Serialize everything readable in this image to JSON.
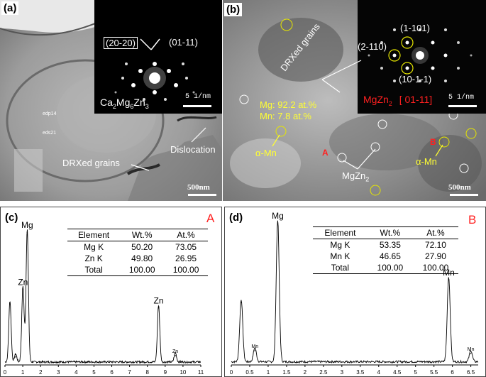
{
  "panel_a": {
    "label": "(a)",
    "saed_spots": [
      "(20-20)",
      "(01-11)"
    ],
    "phase": "Ca2Mg6Zn3",
    "phase_parts": [
      "Ca",
      "2",
      "Mg",
      "6",
      "Zn",
      "3"
    ],
    "inset_scale": "5 1/nm",
    "annotations": [
      "edp14",
      "eds21",
      "DRXed grains",
      "Dislocation"
    ],
    "scale_bar": "500nm"
  },
  "panel_b": {
    "label": "(b)",
    "saed_spots": [
      "(1-101)",
      "(2-110)",
      "(10-1-1)"
    ],
    "phase_name": "MgZn",
    "phase_sub": "2",
    "zone_axis": "[ 01-11]",
    "inset_scale": "5 1/nm",
    "composition": [
      "Mg: 92.2 at.%",
      "Mn: 7.8 at.%"
    ],
    "annotations": [
      "DRXed grains",
      "α-Mn",
      "A",
      "MgZn",
      "2",
      "B",
      "α-Mn"
    ],
    "scale_bar": "500nm"
  },
  "chart_data": [
    {
      "type": "line",
      "panel_label": "(c)",
      "point_label": "A",
      "xlim": [
        0,
        11
      ],
      "x_ticks": [
        "0",
        "1",
        "2",
        "3",
        "4",
        "5",
        "6",
        "7",
        "8",
        "9",
        "10",
        "11"
      ],
      "peaks": [
        {
          "x": 0.28,
          "rel_height": 0.46
        },
        {
          "x": 0.6,
          "rel_height": 0.06
        },
        {
          "x": 1.01,
          "rel_height": 0.57,
          "label": "Zn"
        },
        {
          "x": 1.25,
          "rel_height": 1.0,
          "label": "Mg"
        },
        {
          "x": 8.63,
          "rel_height": 0.43,
          "label": "Zn"
        },
        {
          "x": 9.57,
          "rel_height": 0.07,
          "label": "Zn"
        }
      ],
      "table": {
        "headers": [
          "Element",
          "Wt.%",
          "At.%"
        ],
        "rows": [
          [
            "Mg K",
            "50.20",
            "73.05"
          ],
          [
            "Zn K",
            "49.80",
            "26.95"
          ],
          [
            "Total",
            "100.00",
            "100.00"
          ]
        ]
      }
    },
    {
      "type": "line",
      "panel_label": "(d)",
      "point_label": "B",
      "xlim": [
        0,
        6.7
      ],
      "x_ticks": [
        "0",
        "0.5",
        "1",
        "1.5",
        "2",
        "2.5",
        "3",
        "3.5",
        "4",
        "4.5",
        "5",
        "5.5",
        "6",
        "6.5"
      ],
      "peaks": [
        {
          "x": 0.27,
          "rel_height": 0.44
        },
        {
          "x": 0.64,
          "rel_height": 0.1,
          "label": "Mn"
        },
        {
          "x": 1.26,
          "rel_height": 1.0,
          "label": "Mg"
        },
        {
          "x": 5.9,
          "rel_height": 0.6,
          "label": "Mn"
        },
        {
          "x": 6.5,
          "rel_height": 0.08,
          "label": "Mn"
        }
      ],
      "table": {
        "headers": [
          "Element",
          "Wt.%",
          "At.%"
        ],
        "rows": [
          [
            "Mg K",
            "53.35",
            "72.10"
          ],
          [
            "Mn K",
            "46.65",
            "27.90"
          ],
          [
            "Total",
            "100.00",
            "100.00"
          ]
        ]
      }
    }
  ]
}
